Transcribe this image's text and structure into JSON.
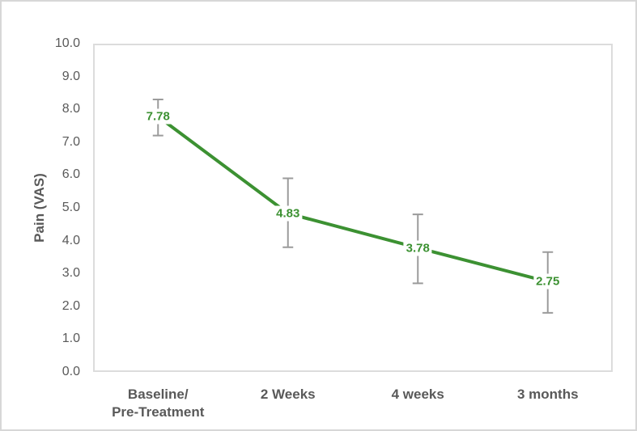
{
  "chart_data": {
    "type": "line",
    "title": "",
    "ylabel": "Pain (VAS)",
    "xlabel": "",
    "categories": [
      "Baseline/\nPre-Treatment",
      "2 Weeks",
      "4 weeks",
      "3 months"
    ],
    "series": [
      {
        "name": "Pain (VAS)",
        "values": [
          7.78,
          4.83,
          3.78,
          2.75
        ],
        "data_labels": [
          "7.78",
          "4.83",
          "3.78",
          "2.75"
        ],
        "error_bars": [
          {
            "upper": 8.3,
            "lower": 7.2
          },
          {
            "upper": 5.9,
            "lower": 3.8
          },
          {
            "upper": 4.8,
            "lower": 2.7
          },
          {
            "upper": 3.65,
            "lower": 1.8
          }
        ]
      }
    ],
    "ylim": [
      0,
      10
    ],
    "ytick_labels": [
      "0.0",
      "1.0",
      "2.0",
      "3.0",
      "4.0",
      "5.0",
      "6.0",
      "7.0",
      "8.0",
      "9.0",
      "10.0"
    ],
    "grid": false,
    "legend": "none",
    "colors": {
      "line": "#3C9132",
      "data_label": "#3C9132",
      "error_bar": "#9B9B9B",
      "axis_text": "#595959",
      "axis_line": "#DCDCDC"
    }
  }
}
